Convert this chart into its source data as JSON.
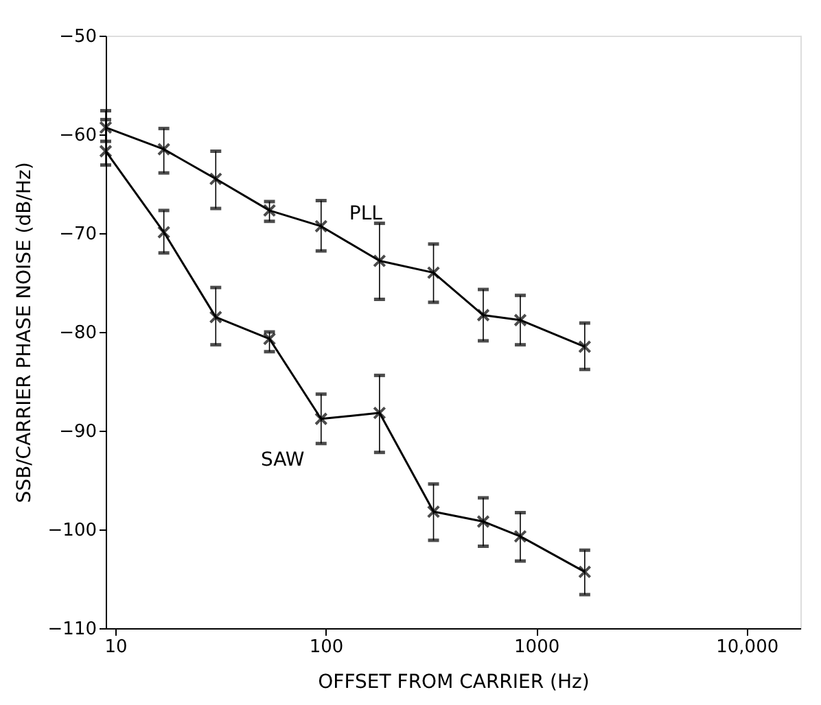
{
  "chart_data": {
    "type": "line",
    "xlabel": "OFFSET FROM CARRIER (Hz)",
    "ylabel": "SSB/CARRIER PHASE NOISE (dB/Hz)",
    "x": [
      9,
      17,
      30,
      54,
      95,
      180,
      325,
      560,
      840,
      1700
    ],
    "series": [
      {
        "color": "#000000",
        "values": [
          -59.3,
          -61.5,
          -64.5,
          -67.7,
          -69.3,
          -72.8,
          -74.0,
          -78.3,
          -78.8,
          -81.5
        ],
        "errors": [
          [
            -60.7,
            -57.6
          ],
          [
            -63.9,
            -59.4
          ],
          [
            -67.5,
            -61.7
          ],
          [
            -68.8,
            -66.8
          ],
          [
            -71.8,
            -66.7
          ],
          [
            -76.7,
            -69.0
          ],
          [
            -77.0,
            -71.1
          ],
          [
            -80.9,
            -75.7
          ],
          [
            -81.3,
            -76.3
          ],
          [
            -83.8,
            -79.1
          ]
        ]
      },
      {
        "color": "#000000",
        "values": [
          -61.7,
          -69.9,
          -78.5,
          -80.7,
          -88.8,
          -88.2,
          -98.2,
          -99.2,
          -100.7,
          -104.3
        ],
        "errors": [
          [
            -63.1,
            -58.5
          ],
          [
            -72.0,
            -67.7
          ],
          [
            -81.3,
            -75.5
          ],
          [
            -82.0,
            -80.0
          ],
          [
            -91.3,
            -86.3
          ],
          [
            -92.2,
            -84.4
          ],
          [
            -101.1,
            -95.4
          ],
          [
            -101.7,
            -96.8
          ],
          [
            -103.2,
            -98.3
          ],
          [
            -106.6,
            -102.1
          ]
        ]
      }
    ],
    "annotations": [
      "PLL",
      "SAW"
    ],
    "log": "x",
    "xlim": [
      9,
      18000
    ],
    "xticks": [
      10,
      100,
      {
        "value": 1000,
        "label": "1000"
      },
      {
        "value": 10000,
        "label": "10,000"
      }
    ],
    "ylim": [
      -110,
      -50
    ],
    "yticks": [
      -110,
      -100,
      -90,
      -80,
      -70,
      -60,
      -50
    ],
    "marker": "cross",
    "line_style": "solid",
    "grid": false
  }
}
